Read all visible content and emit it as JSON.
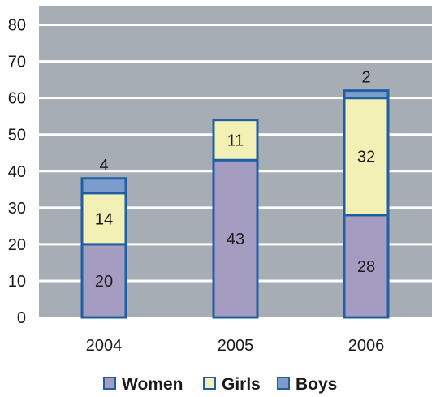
{
  "chart_data": {
    "type": "bar",
    "stacked": true,
    "categories": [
      "2004",
      "2005",
      "2006"
    ],
    "series": [
      {
        "name": "Women",
        "values": [
          20,
          43,
          28
        ],
        "color": "#A59DC1"
      },
      {
        "name": "Girls",
        "values": [
          14,
          11,
          32
        ],
        "color": "#F2F0B5"
      },
      {
        "name": "Boys",
        "values": [
          4,
          0,
          2
        ],
        "color": "#7C9CCB"
      }
    ],
    "data_labels": [
      [
        "20",
        "14",
        "4"
      ],
      [
        "43",
        "11",
        ""
      ],
      [
        "28",
        "32",
        "2"
      ]
    ],
    "ylim": [
      0,
      80
    ],
    "yticks": [
      0,
      10,
      20,
      30,
      40,
      50,
      60,
      70,
      80
    ],
    "grid": true,
    "legend_position": "bottom",
    "colors": {
      "plot_background": "#A6ADB5",
      "gridline": "#FFFFFF",
      "bar_outline": "#1F5FA6"
    }
  }
}
